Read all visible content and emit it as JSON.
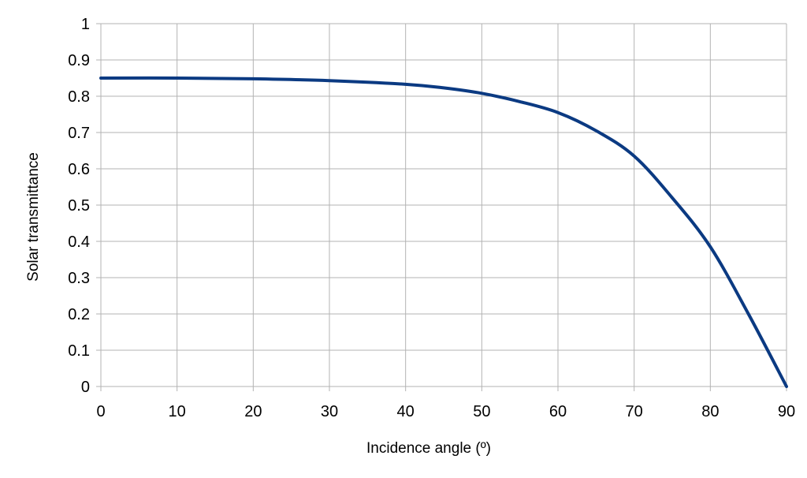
{
  "chart_data": {
    "type": "line",
    "title": "",
    "xlabel": "Incidence angle (º)",
    "ylabel": "Solar transmittance",
    "xlim": [
      0,
      90
    ],
    "ylim": [
      0,
      1
    ],
    "x_ticks": [
      "0",
      "10",
      "20",
      "30",
      "40",
      "50",
      "60",
      "70",
      "80",
      "90"
    ],
    "y_ticks": [
      "0",
      "0.1",
      "0.2",
      "0.3",
      "0.4",
      "0.5",
      "0.6",
      "0.7",
      "0.8",
      "0.9",
      "1"
    ],
    "grid": true,
    "legend": "none",
    "series": [
      {
        "color": "#0b3a82",
        "x": [
          0,
          10,
          20,
          30,
          40,
          45,
          50,
          55,
          60,
          65,
          70,
          75,
          80,
          85,
          90
        ],
        "y": [
          0.85,
          0.85,
          0.848,
          0.843,
          0.833,
          0.823,
          0.808,
          0.785,
          0.755,
          0.705,
          0.635,
          0.52,
          0.385,
          0.2,
          0.0
        ]
      }
    ]
  }
}
